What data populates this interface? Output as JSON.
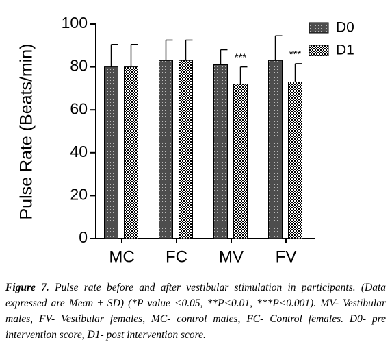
{
  "chart_data": {
    "type": "bar",
    "y_label": "Pulse Rate (Beats/min)",
    "categories": [
      "MC",
      "FC",
      "MV",
      "FV"
    ],
    "series": [
      {
        "name": "D0",
        "color": "#4d4d4d",
        "pattern": "dots",
        "values": [
          80,
          83,
          81,
          83
        ],
        "errors": [
          10.5,
          9.5,
          7,
          11.5
        ]
      },
      {
        "name": "D1",
        "color": "#000000",
        "pattern": "checker",
        "values": [
          80,
          83,
          72,
          73
        ],
        "errors": [
          10.5,
          9.5,
          8,
          8.5
        ],
        "annotations": [
          null,
          null,
          "***",
          "***"
        ]
      }
    ],
    "ylim": [
      0,
      100
    ],
    "yticks": [
      0,
      20,
      40,
      60,
      80,
      100
    ],
    "grid": false,
    "legend": "top-right"
  },
  "caption_label": "Figure 7.",
  "caption": "Pulse rate before and after vestibular stimulation in participants. (Data expressed are Mean ± SD) (*P value <0.05, **P<0.01, ***P<0.001). MV- Vestibular males, FV- Vestibular females, MC- control males, FC- Control females. D0- pre intervention score, D1- post intervention score."
}
